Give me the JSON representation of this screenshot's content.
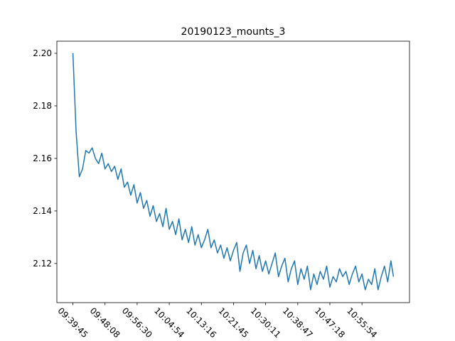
{
  "chart_data": {
    "type": "line",
    "title": "20190123_mounts_3",
    "x": [
      0,
      5,
      10,
      15,
      20,
      25,
      30,
      35,
      40,
      45,
      50,
      55,
      60,
      65,
      70,
      75,
      80,
      85,
      90,
      95,
      100,
      105,
      110,
      115,
      120,
      125,
      130,
      135,
      140,
      145,
      150,
      155,
      160,
      165,
      170,
      175,
      180,
      185,
      190,
      195,
      200,
      205,
      210,
      215,
      220,
      225,
      230,
      235,
      240,
      245,
      250,
      255,
      260,
      265,
      270,
      275,
      280,
      285,
      290,
      295,
      300,
      305,
      310,
      315,
      320,
      325,
      330,
      335,
      340,
      345,
      350,
      355,
      360,
      365,
      370,
      375,
      380,
      385,
      390,
      395,
      400,
      405,
      410,
      415,
      420,
      425,
      430,
      435,
      440,
      445,
      450,
      455,
      460,
      465,
      470,
      475,
      480,
      485,
      490,
      495,
      499
    ],
    "series": [
      {
        "color": "#1f77b4",
        "values": [
          2.2,
          2.17,
          2.153,
          2.156,
          2.163,
          2.162,
          2.164,
          2.16,
          2.158,
          2.162,
          2.156,
          2.158,
          2.155,
          2.157,
          2.152,
          2.156,
          2.149,
          2.151,
          2.146,
          2.15,
          2.143,
          2.147,
          2.141,
          2.144,
          2.138,
          2.142,
          2.136,
          2.139,
          2.134,
          2.141,
          2.133,
          2.136,
          2.131,
          2.137,
          2.129,
          2.133,
          2.128,
          2.134,
          2.127,
          2.131,
          2.126,
          2.129,
          2.133,
          2.126,
          2.129,
          2.124,
          2.127,
          2.122,
          2.126,
          2.121,
          2.125,
          2.128,
          2.117,
          2.124,
          2.127,
          2.12,
          2.125,
          2.118,
          2.123,
          2.117,
          2.121,
          2.116,
          2.12,
          2.124,
          2.115,
          2.119,
          2.122,
          2.113,
          2.118,
          2.121,
          2.112,
          2.118,
          2.114,
          2.119,
          2.11,
          2.116,
          2.112,
          2.117,
          2.114,
          2.119,
          2.111,
          2.115,
          2.113,
          2.118,
          2.115,
          2.117,
          2.112,
          2.116,
          2.119,
          2.113,
          2.116,
          2.11,
          2.114,
          2.112,
          2.118,
          2.11,
          2.115,
          2.119,
          2.113,
          2.121,
          2.115
        ]
      }
    ],
    "xlim": [
      -24.95,
      523.95
    ],
    "xticks": [
      {
        "value": 0,
        "label": "09:39:45"
      },
      {
        "value": 50,
        "label": "09:48:08"
      },
      {
        "value": 100,
        "label": "09:56:30"
      },
      {
        "value": 150,
        "label": "10:04:54"
      },
      {
        "value": 200,
        "label": "10:13:16"
      },
      {
        "value": 250,
        "label": "10:21:45"
      },
      {
        "value": 300,
        "label": "10:30:11"
      },
      {
        "value": 350,
        "label": "10:38:47"
      },
      {
        "value": 400,
        "label": "10:47:18"
      },
      {
        "value": 450,
        "label": "10:55:54"
      }
    ],
    "ylim": [
      2.1051,
      2.2046
    ],
    "yticks": [
      2.12,
      2.14,
      2.16,
      2.18,
      {
        "value": 2.2,
        "label": "2.20"
      }
    ],
    "grid": false
  }
}
